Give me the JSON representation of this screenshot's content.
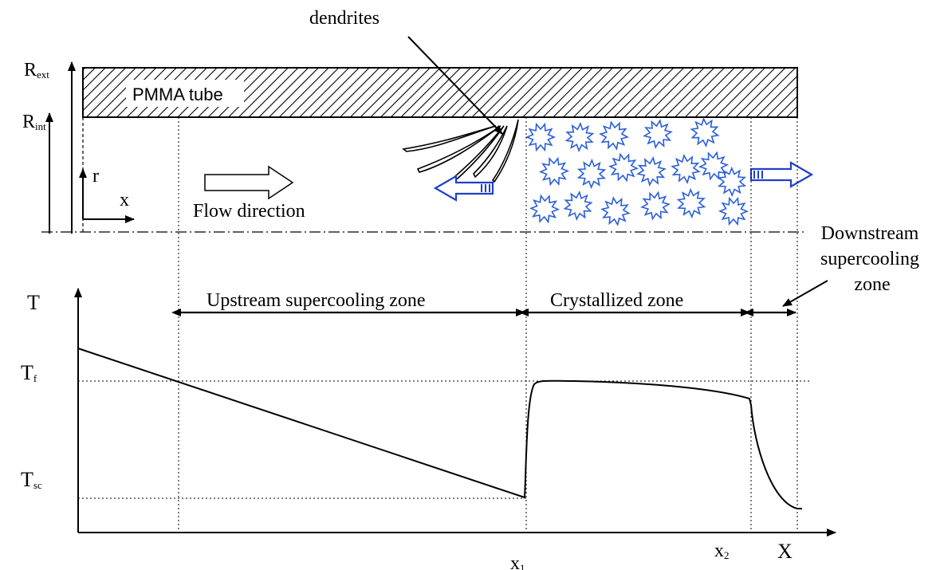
{
  "labels": {
    "dendrites": "dendrites",
    "tube": "PMMA tube",
    "r_ext": "R",
    "r_ext_sub": "ext",
    "r_int": "R",
    "r_int_sub": "int",
    "r_axis": "r",
    "x_axis": "x",
    "flow": "Flow direction",
    "downstream": [
      "Downstream",
      "supercooling",
      "zone"
    ],
    "t_axis": "T",
    "tf": "T",
    "tf_sub": "f",
    "tsc": "T",
    "tsc_sub": "sc",
    "upstream_zone": "Upstream supercooling zone",
    "crystallized_zone": "Crystallized zone",
    "x1": "x",
    "x1_sub": "1",
    "x2": "x",
    "x2_sub": "2",
    "X_axis": "X"
  },
  "colors": {
    "ink": "#000000",
    "crystal": "#2b5fd9",
    "arrow_blue": "#1f3fcc"
  },
  "temperature_profile": {
    "segments": [
      "linear decrease",
      "sharp rise to near T_f",
      "slow decrease",
      "sharp drop to downstream"
    ]
  }
}
